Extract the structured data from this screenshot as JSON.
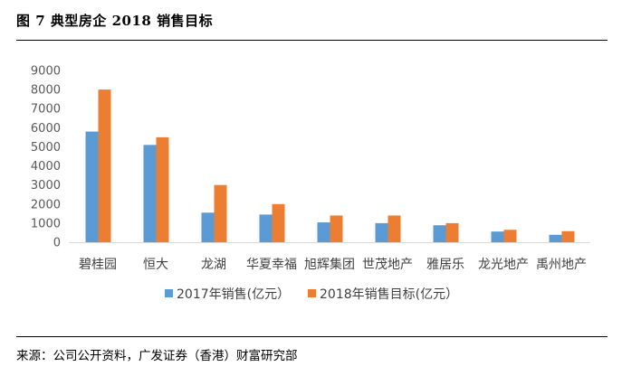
{
  "figure": {
    "title": "图 7 典型房企 2018 销售目标",
    "source": "来源：公司公开资料，广发证券（香港）财富研究部"
  },
  "chart_data": {
    "type": "bar",
    "title": "",
    "xlabel": "",
    "ylabel": "",
    "categories": [
      "碧桂园",
      "恒大",
      "龙湖",
      "华夏幸福",
      "旭辉集团",
      "世茂地产",
      "雅居乐",
      "龙光地产",
      "禹州地产"
    ],
    "series": [
      {
        "name": "2017年销售(亿元）",
        "color": "#5b9bd5",
        "values": [
          5800,
          5100,
          1550,
          1450,
          1040,
          1000,
          890,
          560,
          390
        ]
      },
      {
        "name": "2018年销售目标(亿元）",
        "color": "#ed7d31",
        "values": [
          8000,
          5500,
          3000,
          2000,
          1400,
          1400,
          1000,
          650,
          580
        ]
      }
    ],
    "ylim": [
      0,
      9000
    ],
    "yticks": [
      0,
      1000,
      2000,
      3000,
      4000,
      5000,
      6000,
      7000,
      8000,
      9000
    ],
    "grid": false,
    "legend": "bottom"
  }
}
